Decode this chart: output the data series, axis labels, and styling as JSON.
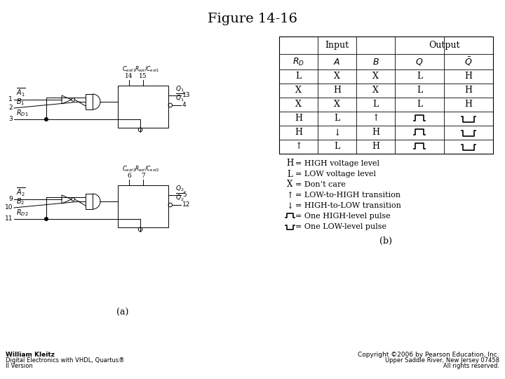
{
  "title": "Figure 14-16",
  "title_fontsize": 14,
  "background_color": "#ffffff",
  "table_col_headers": [
    "R_D",
    "A",
    "B",
    "Q",
    "Q_bar"
  ],
  "table_rows": [
    [
      "L",
      "X",
      "X",
      "L",
      "H"
    ],
    [
      "X",
      "H",
      "X",
      "L",
      "H"
    ],
    [
      "X",
      "X",
      "L",
      "L",
      "H"
    ],
    [
      "H",
      "L",
      "↑",
      "pulse_high",
      "pulse_low"
    ],
    [
      "H",
      "↓",
      "H",
      "pulse_high",
      "pulse_low"
    ],
    [
      "↑",
      "L",
      "H",
      "pulse_high",
      "pulse_low"
    ]
  ],
  "footer_left_line1": "William Kleitz",
  "footer_left_line2": "Digital Electronics with VHDL, Quartus®",
  "footer_left_line3": "II Version",
  "footer_right_line1": "Copyright ©2006 by Pearson Education, Inc.",
  "footer_right_line2": "Upper Saddle River, New Jersey 07458",
  "footer_right_line3": "All rights reserved."
}
